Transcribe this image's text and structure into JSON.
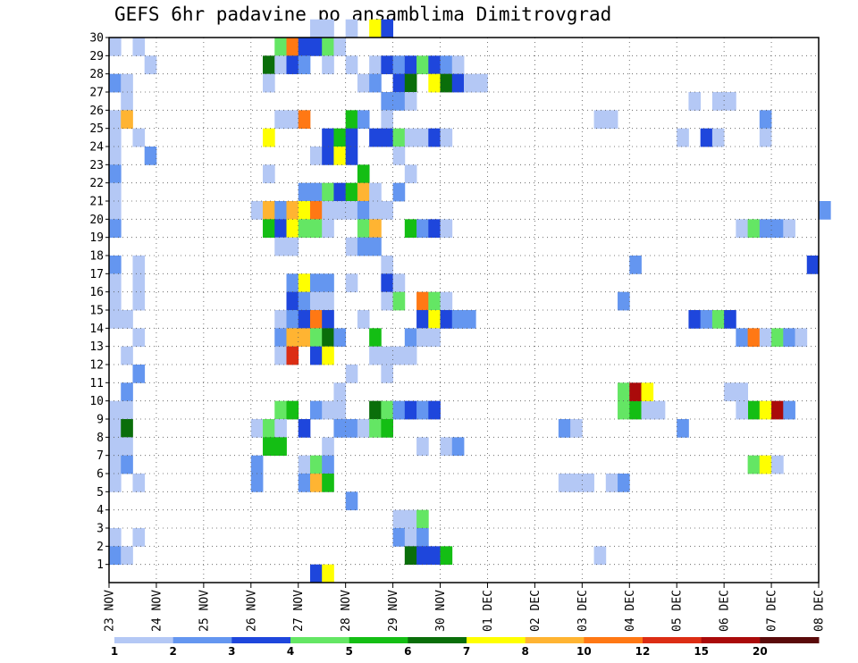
{
  "chart_data": {
    "type": "heatmap",
    "title": "GEFS 6hr padavine po ansamblima Dimitrovgrad",
    "xlabel": "",
    "ylabel": "",
    "x_tick_labels": [
      "23 NOV",
      "24 NOV",
      "25 NOV",
      "26 NOV",
      "27 NOV",
      "28 NOV",
      "29 NOV",
      "30 NOV",
      "01 DEC",
      "02 DEC",
      "03 DEC",
      "04 DEC",
      "05 DEC",
      "06 DEC",
      "07 DEC",
      "08 DEC"
    ],
    "x_range": [
      0,
      60
    ],
    "x_unit": "6-hour step",
    "y_tick_labels": [
      "1",
      "2",
      "3",
      "4",
      "5",
      "6",
      "7",
      "8",
      "9",
      "10",
      "11",
      "12",
      "13",
      "14",
      "15",
      "16",
      "17",
      "18",
      "19",
      "20",
      "21",
      "22",
      "23",
      "24",
      "25",
      "26",
      "27",
      "28",
      "29",
      "30"
    ],
    "y_range": [
      0,
      30
    ],
    "grid": "dotted",
    "colorbar": {
      "labels": [
        "1",
        "2",
        "3",
        "4",
        "5",
        "6",
        "7",
        "8",
        "10",
        "12",
        "15",
        "20"
      ],
      "colors": [
        "#b4c8f5",
        "#6496f0",
        "#1e46dc",
        "#64e664",
        "#14be14",
        "#0a6e0a",
        "#ffff00",
        "#ffb432",
        "#ff7814",
        "#dc2d14",
        "#aa0a0a",
        "#5a0a0a"
      ]
    },
    "cells": [
      {
        "m": 30,
        "c": [
          [
            17,
            1
          ],
          [
            18,
            1
          ],
          [
            20,
            1
          ],
          [
            22,
            7
          ],
          [
            23,
            3
          ]
        ]
      },
      {
        "m": 29,
        "c": [
          [
            0,
            1
          ],
          [
            2,
            1
          ],
          [
            14,
            4
          ],
          [
            15,
            9
          ],
          [
            16,
            3
          ],
          [
            17,
            3
          ],
          [
            18,
            4
          ],
          [
            19,
            1
          ]
        ]
      },
      {
        "m": 28,
        "c": [
          [
            3,
            1
          ],
          [
            13,
            6
          ],
          [
            14,
            1
          ],
          [
            15,
            3
          ],
          [
            16,
            2
          ],
          [
            18,
            1
          ],
          [
            20,
            1
          ],
          [
            22,
            1
          ],
          [
            23,
            3
          ],
          [
            24,
            2
          ],
          [
            25,
            3
          ],
          [
            26,
            4
          ],
          [
            27,
            3
          ],
          [
            28,
            2
          ],
          [
            29,
            1
          ]
        ]
      },
      {
        "m": 27,
        "c": [
          [
            0,
            2
          ],
          [
            1,
            1
          ],
          [
            13,
            1
          ],
          [
            21,
            1
          ],
          [
            22,
            2
          ],
          [
            24,
            3
          ],
          [
            25,
            6
          ],
          [
            27,
            7
          ],
          [
            28,
            6
          ],
          [
            29,
            3
          ],
          [
            30,
            1
          ],
          [
            31,
            1
          ]
        ]
      },
      {
        "m": 26,
        "c": [
          [
            1,
            1
          ],
          [
            23,
            2
          ],
          [
            24,
            2
          ],
          [
            25,
            1
          ],
          [
            49,
            1
          ],
          [
            51,
            1
          ],
          [
            52,
            1
          ]
        ]
      },
      {
        "m": 25,
        "c": [
          [
            0,
            1
          ],
          [
            1,
            8
          ],
          [
            14,
            1
          ],
          [
            15,
            1
          ],
          [
            16,
            9
          ],
          [
            20,
            5
          ],
          [
            21,
            2
          ],
          [
            23,
            1
          ],
          [
            41,
            1
          ],
          [
            42,
            1
          ],
          [
            55,
            2
          ]
        ]
      },
      {
        "m": 24,
        "c": [
          [
            0,
            1
          ],
          [
            2,
            1
          ],
          [
            13,
            7
          ],
          [
            18,
            3
          ],
          [
            19,
            5
          ],
          [
            20,
            3
          ],
          [
            22,
            3
          ],
          [
            23,
            3
          ],
          [
            24,
            4
          ],
          [
            25,
            1
          ],
          [
            26,
            1
          ],
          [
            27,
            3
          ],
          [
            28,
            1
          ],
          [
            48,
            1
          ],
          [
            50,
            3
          ],
          [
            51,
            1
          ],
          [
            55,
            1
          ]
        ]
      },
      {
        "m": 23,
        "c": [
          [
            0,
            1
          ],
          [
            3,
            2
          ],
          [
            17,
            1
          ],
          [
            18,
            3
          ],
          [
            19,
            7
          ],
          [
            20,
            3
          ],
          [
            24,
            1
          ]
        ]
      },
      {
        "m": 22,
        "c": [
          [
            0,
            2
          ],
          [
            13,
            1
          ],
          [
            21,
            5
          ],
          [
            25,
            1
          ]
        ]
      },
      {
        "m": 21,
        "c": [
          [
            0,
            1
          ],
          [
            16,
            2
          ],
          [
            17,
            2
          ],
          [
            18,
            4
          ],
          [
            19,
            3
          ],
          [
            20,
            5
          ],
          [
            21,
            8
          ],
          [
            22,
            1
          ],
          [
            24,
            2
          ]
        ]
      },
      {
        "m": 20,
        "c": [
          [
            0,
            1
          ],
          [
            12,
            1
          ],
          [
            13,
            8
          ],
          [
            14,
            2
          ],
          [
            15,
            8
          ],
          [
            16,
            7
          ],
          [
            17,
            9
          ],
          [
            18,
            1
          ],
          [
            19,
            1
          ],
          [
            20,
            1
          ],
          [
            21,
            2
          ],
          [
            22,
            1
          ],
          [
            23,
            1
          ],
          [
            60,
            2
          ]
        ]
      },
      {
        "m": 19,
        "c": [
          [
            0,
            2
          ],
          [
            13,
            5
          ],
          [
            14,
            3
          ],
          [
            15,
            7
          ],
          [
            16,
            4
          ],
          [
            17,
            4
          ],
          [
            18,
            1
          ],
          [
            21,
            4
          ],
          [
            22,
            8
          ],
          [
            25,
            5
          ],
          [
            26,
            2
          ],
          [
            27,
            3
          ],
          [
            28,
            1
          ],
          [
            53,
            1
          ],
          [
            54,
            4
          ],
          [
            55,
            2
          ],
          [
            56,
            2
          ],
          [
            57,
            1
          ]
        ]
      },
      {
        "m": 18,
        "c": [
          [
            14,
            1
          ],
          [
            15,
            1
          ],
          [
            20,
            1
          ],
          [
            21,
            2
          ],
          [
            22,
            2
          ]
        ]
      },
      {
        "m": 17,
        "c": [
          [
            0,
            2
          ],
          [
            2,
            1
          ],
          [
            23,
            1
          ],
          [
            44,
            2
          ],
          [
            59,
            3
          ]
        ]
      },
      {
        "m": 16,
        "c": [
          [
            0,
            1
          ],
          [
            2,
            1
          ],
          [
            15,
            2
          ],
          [
            16,
            7
          ],
          [
            17,
            2
          ],
          [
            18,
            2
          ],
          [
            20,
            1
          ],
          [
            23,
            3
          ],
          [
            24,
            1
          ]
        ]
      },
      {
        "m": 15,
        "c": [
          [
            0,
            1
          ],
          [
            2,
            1
          ],
          [
            15,
            3
          ],
          [
            16,
            2
          ],
          [
            17,
            1
          ],
          [
            18,
            1
          ],
          [
            23,
            1
          ],
          [
            24,
            4
          ],
          [
            26,
            9
          ],
          [
            27,
            4
          ],
          [
            28,
            1
          ]
        ]
      },
      {
        "m": 14,
        "c": [
          [
            0,
            1
          ],
          [
            1,
            1
          ],
          [
            14,
            1
          ],
          [
            15,
            2
          ],
          [
            16,
            3
          ],
          [
            17,
            9
          ],
          [
            18,
            3
          ],
          [
            21,
            1
          ],
          [
            26,
            3
          ],
          [
            27,
            7
          ],
          [
            28,
            3
          ],
          [
            29,
            2
          ],
          [
            30,
            2
          ],
          [
            49,
            3
          ],
          [
            50,
            2
          ],
          [
            51,
            4
          ],
          [
            52,
            3
          ]
        ]
      },
      {
        "m": 13,
        "c": [
          [
            2,
            1
          ],
          [
            14,
            2
          ],
          [
            15,
            8
          ],
          [
            16,
            8
          ],
          [
            17,
            4
          ],
          [
            18,
            6
          ],
          [
            19,
            2
          ],
          [
            22,
            5
          ],
          [
            25,
            2
          ],
          [
            26,
            1
          ],
          [
            27,
            1
          ],
          [
            53,
            2
          ],
          [
            54,
            9
          ],
          [
            55,
            1
          ],
          [
            56,
            4
          ],
          [
            57,
            2
          ],
          [
            58,
            1
          ]
        ]
      },
      {
        "m": 12,
        "c": [
          [
            1,
            1
          ],
          [
            14,
            1
          ],
          [
            15,
            10
          ],
          [
            17,
            3
          ],
          [
            18,
            7
          ],
          [
            22,
            1
          ],
          [
            23,
            1
          ],
          [
            24,
            1
          ],
          [
            25,
            1
          ]
        ]
      },
      {
        "m": 11,
        "c": [
          [
            2,
            2
          ],
          [
            20,
            1
          ],
          [
            23,
            1
          ]
        ]
      },
      {
        "m": 10,
        "c": [
          [
            1,
            2
          ],
          [
            19,
            1
          ]
        ]
      },
      {
        "m": 9,
        "c": [
          [
            0,
            1
          ],
          [
            1,
            1
          ],
          [
            14,
            4
          ],
          [
            15,
            5
          ],
          [
            17,
            2
          ],
          [
            18,
            1
          ],
          [
            19,
            1
          ],
          [
            22,
            6
          ],
          [
            23,
            4
          ],
          [
            24,
            2
          ],
          [
            25,
            3
          ],
          [
            26,
            2
          ],
          [
            27,
            3
          ],
          [
            43,
            4
          ],
          [
            44,
            5
          ],
          [
            45,
            1
          ],
          [
            46,
            1
          ],
          [
            54,
            5
          ],
          [
            55,
            7
          ],
          [
            56,
            11
          ],
          [
            57,
            2
          ]
        ]
      },
      {
        "m": 8,
        "c": [
          [
            0,
            1
          ],
          [
            1,
            6
          ],
          [
            12,
            1
          ],
          [
            13,
            4
          ],
          [
            14,
            1
          ],
          [
            16,
            3
          ],
          [
            19,
            2
          ],
          [
            20,
            2
          ],
          [
            21,
            1
          ],
          [
            22,
            4
          ],
          [
            23,
            5
          ],
          [
            38,
            2
          ],
          [
            39,
            1
          ],
          [
            48,
            2
          ]
        ]
      },
      {
        "m": 7,
        "c": [
          [
            0,
            1
          ],
          [
            1,
            1
          ],
          [
            13,
            5
          ],
          [
            14,
            5
          ],
          [
            18,
            1
          ],
          [
            26,
            1
          ],
          [
            28,
            1
          ],
          [
            29,
            2
          ]
        ]
      },
      {
        "m": 6,
        "c": [
          [
            0,
            1
          ],
          [
            1,
            2
          ],
          [
            12,
            2
          ],
          [
            16,
            1
          ],
          [
            17,
            4
          ],
          [
            18,
            2
          ],
          [
            54,
            4
          ],
          [
            55,
            7
          ],
          [
            56,
            1
          ]
        ]
      },
      {
        "m": 5,
        "c": [
          [
            0,
            1
          ],
          [
            2,
            1
          ],
          [
            12,
            2
          ],
          [
            16,
            2
          ],
          [
            17,
            8
          ],
          [
            18,
            5
          ],
          [
            38,
            1
          ],
          [
            39,
            1
          ],
          [
            40,
            1
          ],
          [
            42,
            1
          ],
          [
            43,
            2
          ]
        ]
      },
      {
        "m": 4,
        "c": [
          [
            20,
            2
          ]
        ]
      },
      {
        "m": 3,
        "c": [
          [
            24,
            1
          ],
          [
            25,
            1
          ],
          [
            26,
            4
          ]
        ]
      },
      {
        "m": 2,
        "c": [
          [
            0,
            1
          ],
          [
            2,
            1
          ],
          [
            24,
            2
          ],
          [
            25,
            1
          ],
          [
            26,
            2
          ]
        ]
      },
      {
        "m": 1,
        "c": [
          [
            0,
            2
          ],
          [
            1,
            1
          ],
          [
            25,
            6
          ],
          [
            26,
            3
          ],
          [
            27,
            3
          ],
          [
            28,
            5
          ],
          [
            41,
            1
          ]
        ]
      },
      {
        "m": 0,
        "c": [
          [
            17,
            3
          ],
          [
            18,
            7
          ]
        ]
      }
    ],
    "extra_cells": [
      {
        "m": 15,
        "c": [
          [
            43,
            2
          ]
        ]
      },
      {
        "m": 10,
        "c": [
          [
            43,
            4
          ],
          [
            44,
            11
          ],
          [
            45,
            7
          ],
          [
            52,
            1
          ],
          [
            53,
            1
          ]
        ]
      },
      {
        "m": 9,
        "c": [
          [
            53,
            1
          ]
        ]
      }
    ]
  }
}
